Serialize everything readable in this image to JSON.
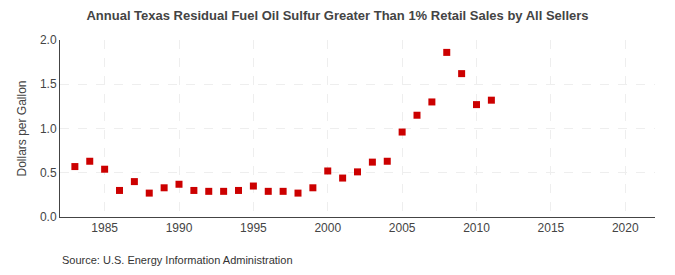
{
  "chart_data": {
    "type": "scatter",
    "title": "Annual Texas Residual Fuel Oil Sulfur Greater Than 1% Retail Sales by All Sellers",
    "ylabel": "Dollars per Gallon",
    "annotations": [
      "Source: U.S. Energy Information Administration"
    ],
    "x": [
      1983,
      1984,
      1985,
      1986,
      1987,
      1988,
      1989,
      1990,
      1991,
      1992,
      1993,
      1994,
      1995,
      1996,
      1997,
      1998,
      1999,
      2000,
      2001,
      2002,
      2003,
      2004,
      2005,
      2006,
      2007,
      2008,
      2009,
      2010,
      2011
    ],
    "values": [
      0.57,
      0.63,
      0.54,
      0.3,
      0.4,
      0.27,
      0.33,
      0.37,
      0.3,
      0.29,
      0.29,
      0.3,
      0.35,
      0.29,
      0.29,
      0.27,
      0.33,
      0.52,
      0.44,
      0.51,
      0.62,
      0.63,
      0.96,
      1.15,
      1.3,
      1.86,
      1.62,
      1.27,
      1.32
    ],
    "color": "#cc0000",
    "marker": "square",
    "xlim": [
      1982,
      2022
    ],
    "ylim": [
      0.0,
      2.0
    ],
    "xticks": [
      1985,
      1990,
      1995,
      2000,
      2005,
      2010,
      2015,
      2020
    ],
    "yticks": [
      {
        "value": 0.0,
        "label": "0.0"
      },
      0.5,
      {
        "value": 1.0,
        "label": "1.0"
      },
      1.5,
      {
        "value": 2.0,
        "label": "2.0"
      }
    ],
    "grid": true
  }
}
